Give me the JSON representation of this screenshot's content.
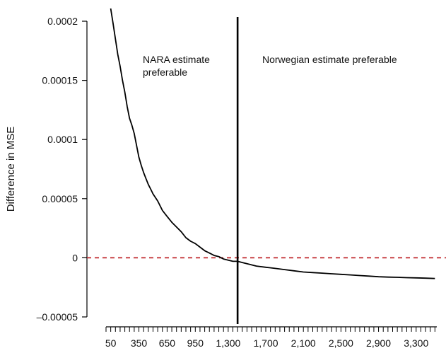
{
  "chart_data": {
    "type": "line",
    "title": "",
    "xlabel": "",
    "ylabel": "Difference in MSE",
    "xlim": [
      0,
      3520
    ],
    "ylim": [
      -5e-05,
      0.0002
    ],
    "grid": false,
    "legend": "none",
    "x_tick_labels": [
      {
        "value": 50,
        "label": "50"
      },
      {
        "value": 350,
        "label": "350"
      },
      {
        "value": 650,
        "label": "650"
      },
      {
        "value": 950,
        "label": "950"
      },
      {
        "value": 1300,
        "label": "1,300"
      },
      {
        "value": 1700,
        "label": "1,700"
      },
      {
        "value": 2100,
        "label": "2,100"
      },
      {
        "value": 2500,
        "label": "2,500"
      },
      {
        "value": 2900,
        "label": "2,900"
      },
      {
        "value": 3300,
        "label": "3,300"
      }
    ],
    "x_minor_ticks": [
      0,
      50,
      100,
      150,
      200,
      250,
      300,
      350,
      400,
      450,
      500,
      550,
      600,
      650,
      700,
      750,
      800,
      850,
      900,
      950,
      1000,
      1050,
      1100,
      1150,
      1200,
      1250,
      1300,
      1350,
      1400,
      1450,
      1500,
      1550,
      1600,
      1650,
      1700,
      1750,
      1800,
      1850,
      1900,
      1950,
      2000,
      2050,
      2100,
      2150,
      2200,
      2250,
      2300,
      2350,
      2400,
      2450,
      2500,
      2550,
      2600,
      2650,
      2700,
      2750,
      2800,
      2850,
      2900,
      2950,
      3000,
      3050,
      3100,
      3150,
      3200,
      3250,
      3300,
      3350,
      3400,
      3450,
      3500
    ],
    "y_ticks": [
      {
        "value": 0.0002,
        "label": "0.0002"
      },
      {
        "value": 0.00015,
        "label": "0.00015"
      },
      {
        "value": 0.0001,
        "label": "0.0001"
      },
      {
        "value": 5e-05,
        "label": "0.00005"
      },
      {
        "value": 0,
        "label": "0"
      },
      {
        "value": -5e-05,
        "label": "–0.00005"
      }
    ],
    "series": [
      {
        "x": [
          50,
          75,
          100,
          125,
          150,
          175,
          200,
          225,
          250,
          275,
          300,
          325,
          350,
          375,
          400,
          425,
          450,
          475,
          500,
          550,
          600,
          650,
          700,
          750,
          800,
          850,
          900,
          950,
          1000,
          1050,
          1100,
          1150,
          1200,
          1250,
          1300,
          1350,
          1400,
          1450,
          1500,
          1600,
          1700,
          1800,
          1900,
          2000,
          2100,
          2200,
          2300,
          2400,
          2500,
          2600,
          2700,
          2800,
          2900,
          3000,
          3100,
          3200,
          3300,
          3400,
          3500
        ],
        "y": [
          0.000211,
          0.000198,
          0.000185,
          0.000172,
          0.000162,
          0.00015,
          0.00014,
          0.000128,
          0.000118,
          0.000112,
          0.000105,
          9.5e-05,
          8.5e-05,
          7.8e-05,
          7.2e-05,
          6.7e-05,
          6.2e-05,
          5.8e-05,
          5.4e-05,
          4.8e-05,
          4e-05,
          3.5e-05,
          3e-05,
          2.6e-05,
          2.2e-05,
          1.7e-05,
          1.4e-05,
          1.2e-05,
          9e-06,
          6e-06,
          4e-06,
          2e-06,
          1e-06,
          -1e-06,
          -2e-06,
          -3e-06,
          -3e-06,
          -4e-06,
          -5e-06,
          -7e-06,
          -8e-06,
          -9e-06,
          -1e-05,
          -1.1e-05,
          -1.2e-05,
          -1.25e-05,
          -1.3e-05,
          -1.35e-05,
          -1.4e-05,
          -1.45e-05,
          -1.5e-05,
          -1.55e-05,
          -1.6e-05,
          -1.63e-05,
          -1.65e-05,
          -1.68e-05,
          -1.7e-05,
          -1.72e-05,
          -1.75e-05
        ],
        "color": "#000000"
      }
    ],
    "reference_lines": [
      {
        "axis": "y",
        "value": 0,
        "style": "dashed",
        "color": "#c0282d"
      },
      {
        "axis": "x",
        "value": 1400,
        "style": "solid",
        "color": "#000000"
      }
    ],
    "annotations": [
      {
        "lines": [
          "NARA estimate",
          "preferable"
        ]
      },
      {
        "lines": [
          "Norwegian estimate preferable"
        ]
      }
    ]
  }
}
